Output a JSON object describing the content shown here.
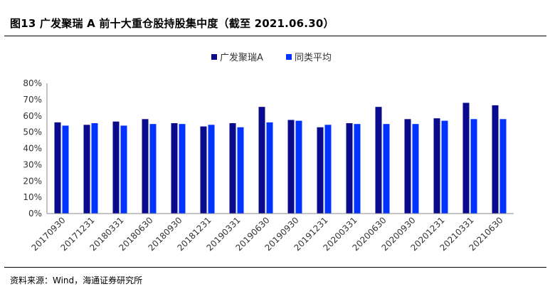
{
  "figure": {
    "title": "图13 广发聚瑞 A 前十大重仓股持股集中度（截至 2021.06.30）",
    "source": "资料来源：Wind，海通证券研究所"
  },
  "chart_data": {
    "type": "bar",
    "categories": [
      "20170930",
      "20171231",
      "20180331",
      "20180630",
      "20180930",
      "20181231",
      "20190331",
      "20190630",
      "20190930",
      "20191231",
      "20200331",
      "20200630",
      "20200930",
      "20201231",
      "20210331",
      "20210630"
    ],
    "series": [
      {
        "name": "广发聚瑞A",
        "color": "#0a0a8c",
        "values": [
          56,
          54.5,
          56.5,
          58,
          55.5,
          53.5,
          55.5,
          65.5,
          57.5,
          53,
          55.5,
          65.5,
          58,
          58.5,
          68,
          66.5
        ]
      },
      {
        "name": "同类平均",
        "color": "#0033ff",
        "values": [
          54,
          55.5,
          54,
          55,
          55,
          54.5,
          53,
          56,
          57,
          54.5,
          55,
          55,
          55,
          57,
          58,
          58
        ]
      }
    ],
    "yticks": [
      "0%",
      "10%",
      "20%",
      "30%",
      "40%",
      "50%",
      "60%",
      "70%",
      "80%"
    ],
    "ylim": [
      0,
      80
    ],
    "xlabel": "",
    "ylabel": "",
    "legend_position": "top",
    "grid": false
  }
}
